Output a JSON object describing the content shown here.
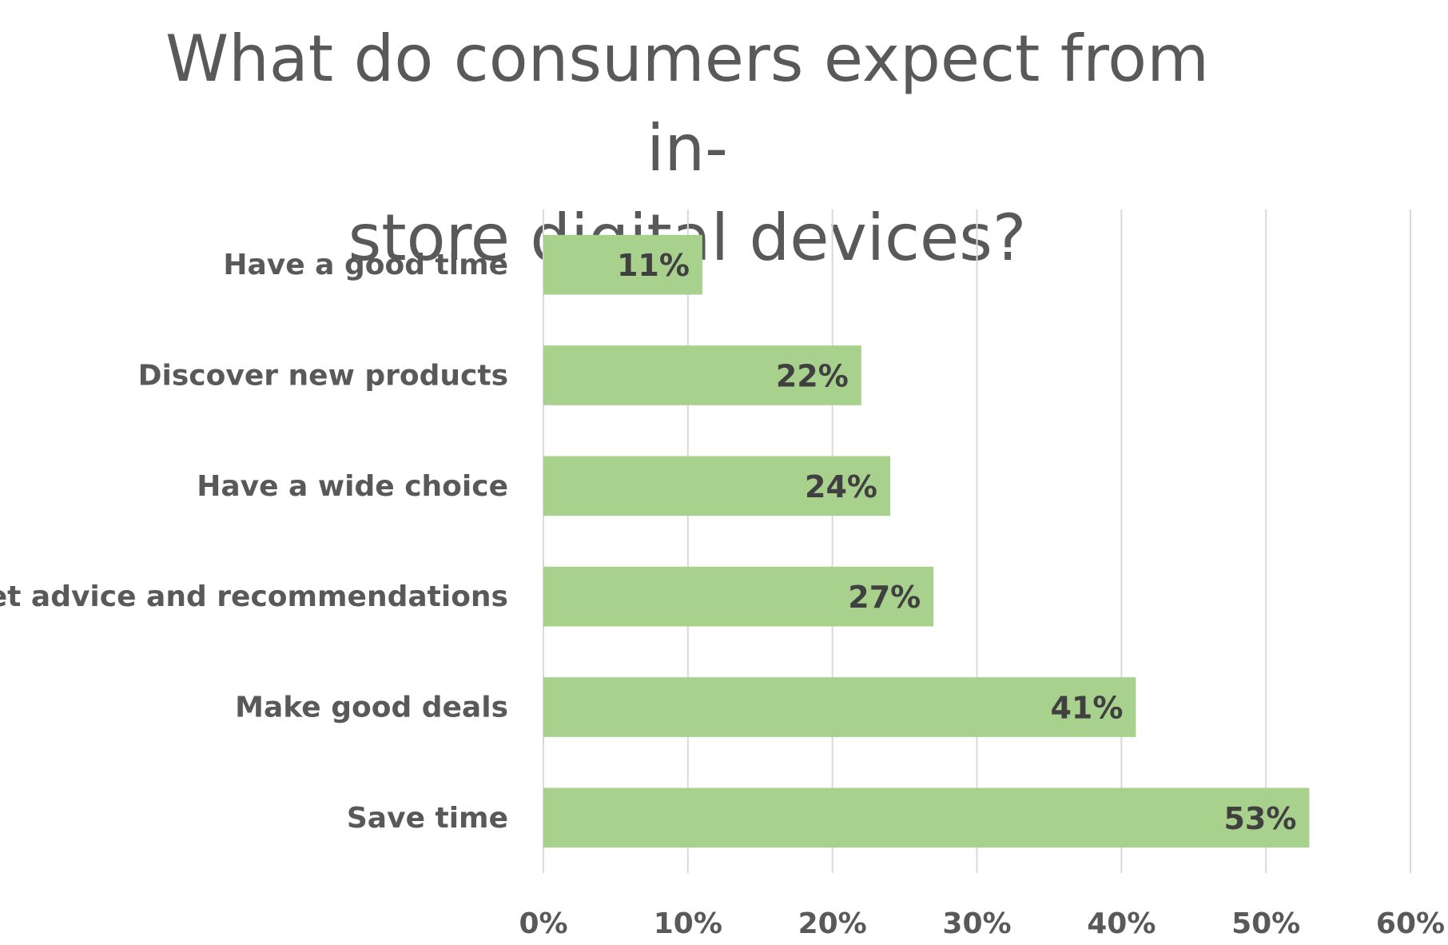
{
  "chart_data": {
    "type": "bar",
    "orientation": "horizontal",
    "title": "What do consumers expect from in-store digital devices?",
    "title_lines": [
      "What do consumers expect from in-",
      "store digital devices?"
    ],
    "categories": [
      "Have a good time",
      "Discover new products",
      "Have a wide choice",
      "Get advice and recommendations",
      "Make good deals",
      "Save time"
    ],
    "values": [
      11,
      22,
      24,
      27,
      41,
      53
    ],
    "data_labels": [
      "11%",
      "22%",
      "24%",
      "27%",
      "41%",
      "53%"
    ],
    "xlim": [
      0,
      60
    ],
    "x_ticks": [
      0,
      10,
      20,
      30,
      40,
      50,
      60
    ],
    "x_tick_labels": [
      "0%",
      "10%",
      "20%",
      "30%",
      "40%",
      "50%",
      "60%"
    ],
    "grid": true,
    "legend": "none",
    "colors": {
      "bar": "#a9d18e",
      "title": "#595959",
      "category_text": "#595959",
      "data_label_text": "#404040",
      "gridline": "#d9d9d9"
    }
  }
}
